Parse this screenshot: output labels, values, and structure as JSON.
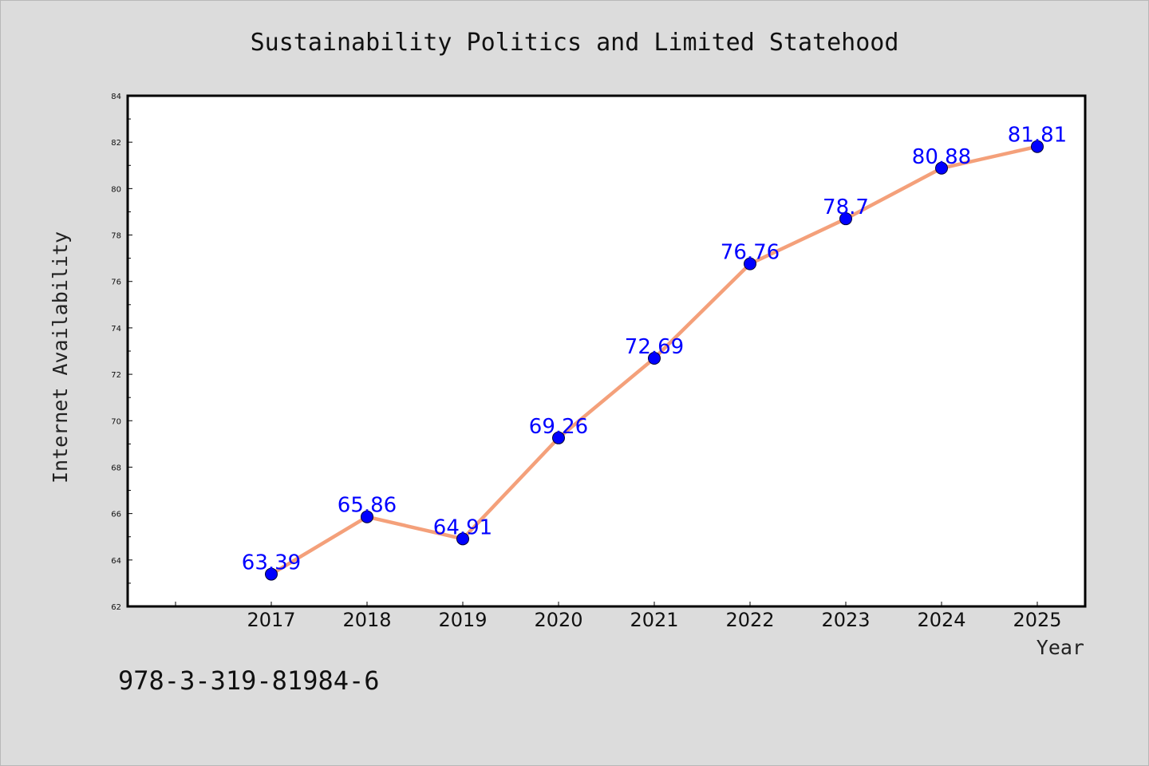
{
  "colors": {
    "background": "#dcdcdc",
    "plot_area": "#ffffff",
    "line": "#f4a07a",
    "marker": "#0000ff",
    "data_label": "#0000ff",
    "axis": "#000000"
  },
  "footer": {
    "isbn": "978-3-319-81984-6"
  },
  "chart_data": {
    "type": "line",
    "title": "Sustainability Politics and Limited Statehood",
    "xlabel": "Year",
    "ylabel": "Internet Availability",
    "categories": [
      "2017",
      "2018",
      "2019",
      "2020",
      "2021",
      "2022",
      "2023",
      "2024",
      "2025"
    ],
    "values": [
      63.39,
      65.86,
      64.91,
      69.26,
      72.69,
      76.76,
      78.7,
      80.88,
      81.81
    ],
    "data_labels": [
      "63.39",
      "65.86",
      "64.91",
      "69.26",
      "72.69",
      "76.76",
      "78.7",
      "80.88",
      "81.81"
    ],
    "ylim": [
      62,
      84
    ],
    "yticks": [
      62,
      64,
      66,
      68,
      70,
      72,
      74,
      76,
      78,
      80,
      82,
      84
    ],
    "grid": false,
    "legend": "none",
    "markers": "circle"
  }
}
